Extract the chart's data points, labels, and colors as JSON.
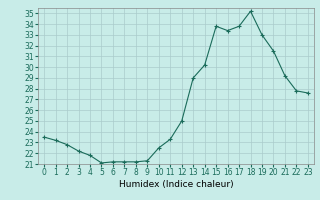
{
  "x": [
    0,
    1,
    2,
    3,
    4,
    5,
    6,
    7,
    8,
    9,
    10,
    11,
    12,
    13,
    14,
    15,
    16,
    17,
    18,
    19,
    20,
    21,
    22,
    23
  ],
  "y": [
    23.5,
    23.2,
    22.8,
    22.2,
    21.8,
    21.1,
    21.2,
    21.2,
    21.2,
    21.3,
    22.5,
    23.3,
    25.0,
    29.0,
    30.2,
    33.8,
    33.4,
    33.8,
    35.2,
    33.0,
    31.5,
    29.2,
    27.8,
    27.6
  ],
  "line_color": "#1a6b5a",
  "marker": "+",
  "marker_size": 3,
  "marker_lw": 0.8,
  "bg_color": "#c8ece8",
  "grid_color": "#aacccc",
  "xlabel": "Humidex (Indice chaleur)",
  "ylim": [
    21,
    35.5
  ],
  "xlim": [
    -0.5,
    23.5
  ],
  "yticks": [
    21,
    22,
    23,
    24,
    25,
    26,
    27,
    28,
    29,
    30,
    31,
    32,
    33,
    34,
    35
  ],
  "xticks": [
    0,
    1,
    2,
    3,
    4,
    5,
    6,
    7,
    8,
    9,
    10,
    11,
    12,
    13,
    14,
    15,
    16,
    17,
    18,
    19,
    20,
    21,
    22,
    23
  ],
  "tick_fontsize": 5.5,
  "xlabel_fontsize": 6.5,
  "line_width": 0.8,
  "spine_color": "#888888"
}
